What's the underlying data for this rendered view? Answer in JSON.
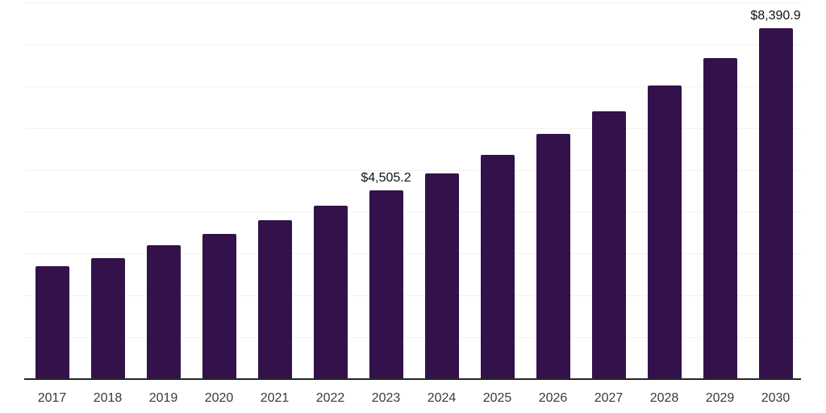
{
  "chart_data": {
    "type": "bar",
    "title": "",
    "xlabel": "",
    "ylabel": "",
    "categories": [
      "2017",
      "2018",
      "2019",
      "2020",
      "2021",
      "2022",
      "2023",
      "2024",
      "2025",
      "2026",
      "2027",
      "2028",
      "2029",
      "2030"
    ],
    "values": [
      2690,
      2900,
      3195,
      3465,
      3790,
      4135,
      4505.2,
      4910,
      5350,
      5860,
      6390,
      7010,
      7670,
      8390.9
    ],
    "data_labels": [
      "",
      "",
      "",
      "",
      "",
      "",
      "$4,505.2",
      "",
      "",
      "",
      "",
      "",
      "",
      "$8,390.9"
    ],
    "ylim": [
      0,
      9000
    ],
    "gridline_interval": 1000,
    "grid": "horizontal",
    "legend": "none",
    "colors": {
      "bar": "#33114b",
      "gridline": "#f2f2f2",
      "axis_line": "#262626",
      "tick_label": "#3a3a3a",
      "data_label": "#111111",
      "background": "#ffffff"
    }
  }
}
